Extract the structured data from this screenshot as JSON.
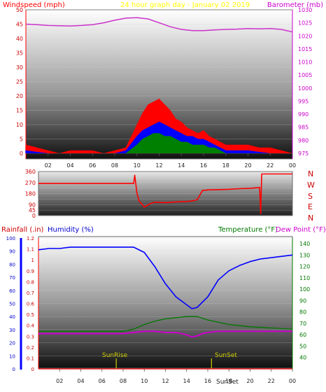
{
  "header": {
    "windspeed_title": "Windspeed (mph)",
    "center_title": "24 hour graph day - January 02 2019",
    "barometer_title": "Barometer (mb)"
  },
  "time_ticks": [
    "02",
    "04",
    "06",
    "08",
    "10",
    "12",
    "14",
    "16",
    "18",
    "20",
    "22",
    "00"
  ],
  "direction_labels": [
    "N",
    "W",
    "S",
    "E",
    "N"
  ],
  "lower_header": {
    "rainfall_label": "Rainfall (.in)",
    "humidity_label": "Humidity (%)",
    "temperature_label": "Temperature (°F)",
    "dewpoint_label": "Dew Point (°F)"
  },
  "markers": {
    "sunrise": "SunRise",
    "sunset": "SunSet",
    "sunset_bottom": "SunSet"
  },
  "colors": {
    "gust": "#ff0000",
    "speed": "#0000ff",
    "avg": "#008000",
    "barometer": "#cc33cc",
    "direction": "#ff0000",
    "humidity": "#0000ff",
    "temperature": "#007700",
    "dewpoint": "#cc00cc",
    "rain": "#ff0000",
    "marker": "#cccc00",
    "title_windspeed": "#ff0000",
    "title_center": "#ffff00",
    "title_barometer": "#cc00cc"
  },
  "chart_data": [
    {
      "type": "line",
      "xlim": [
        0,
        24
      ],
      "wind_axis": {
        "label": "Windspeed (mph)",
        "ylim": [
          0,
          50
        ],
        "ticks": [
          0,
          5,
          10,
          15,
          20,
          25,
          30,
          35,
          40,
          45,
          50
        ]
      },
      "baro_axis": {
        "label": "Barometer (mb)",
        "ylim": [
          975,
          1030
        ],
        "ticks": [
          975,
          980,
          985,
          990,
          995,
          1000,
          1005,
          1010,
          1015,
          1020,
          1025,
          1030
        ]
      },
      "series": [
        {
          "name": "Barometer",
          "x": [
            0,
            1,
            2,
            3,
            4,
            5,
            6,
            7,
            8,
            9,
            10,
            11,
            12,
            13,
            14,
            15,
            16,
            17,
            18,
            19,
            20,
            21,
            22,
            23,
            24
          ],
          "values": [
            1024.5,
            1024.3,
            1024.0,
            1023.9,
            1023.8,
            1024.0,
            1024.3,
            1025.0,
            1026.0,
            1026.8,
            1027.0,
            1026.5,
            1025.0,
            1023.5,
            1022.5,
            1022.0,
            1022.0,
            1022.3,
            1022.5,
            1022.6,
            1022.8,
            1022.7,
            1022.8,
            1022.5,
            1021.5
          ]
        },
        {
          "name": "Windspeed gust",
          "x": [
            0,
            1,
            2,
            3,
            4,
            5,
            6,
            7,
            8,
            9,
            10,
            10.5,
            11,
            11.5,
            12,
            12.5,
            13,
            13.5,
            14,
            14.5,
            15,
            15.5,
            16,
            16.5,
            17,
            17.5,
            18,
            19,
            20,
            21,
            22,
            23,
            24
          ],
          "values": [
            3,
            2,
            1,
            0,
            1,
            1,
            1,
            0,
            1,
            2,
            10,
            14,
            17,
            18,
            19,
            17,
            15,
            12,
            11,
            9,
            8,
            7,
            8,
            6,
            5,
            4,
            3,
            3,
            3,
            2,
            2,
            1,
            0
          ]
        },
        {
          "name": "Windspeed",
          "x": [
            0,
            2,
            4,
            6,
            8,
            9,
            10,
            10.5,
            11,
            11.5,
            12,
            12.5,
            13,
            13.5,
            14,
            14.5,
            15,
            15.5,
            16,
            16.5,
            17,
            17.5,
            18,
            20,
            22,
            24
          ],
          "values": [
            1,
            0,
            0,
            0,
            0,
            1,
            6,
            8,
            9,
            10,
            11,
            10,
            9,
            8,
            7,
            6,
            6,
            5,
            5,
            4,
            3,
            2,
            1,
            1,
            0,
            0
          ]
        },
        {
          "name": "Average windspeed",
          "x": [
            0,
            2,
            4,
            6,
            8,
            9,
            10,
            10.5,
            11,
            11.5,
            12,
            12.5,
            13,
            13.5,
            14,
            14.5,
            15,
            15.5,
            16,
            16.5,
            17,
            17.5,
            18,
            20,
            22,
            24
          ],
          "values": [
            0,
            0,
            0,
            0,
            0,
            0,
            3,
            5,
            6,
            7,
            7,
            6,
            6,
            5,
            4,
            4,
            3,
            3,
            3,
            2,
            2,
            1,
            0,
            0,
            0,
            0
          ]
        }
      ]
    },
    {
      "type": "line",
      "xlim": [
        0,
        24
      ],
      "ylim": [
        0,
        360
      ],
      "yticks": [
        0,
        45,
        90,
        135,
        180,
        225,
        270,
        315,
        360
      ],
      "series": [
        {
          "name": "Wind direction",
          "x": [
            0,
            1,
            2,
            3,
            4,
            5,
            6,
            7,
            8,
            9,
            9.1,
            9.3,
            9.5,
            10,
            10.5,
            11,
            12,
            13,
            14,
            14.5,
            15,
            15.5,
            16,
            17,
            18,
            19,
            20,
            20.9,
            21,
            21.1,
            22,
            23,
            24
          ],
          "values": [
            262,
            262,
            262,
            262,
            262,
            262,
            262,
            262,
            262,
            262,
            330,
            185,
            120,
            70,
            95,
            110,
            105,
            112,
            115,
            120,
            130,
            205,
            210,
            212,
            215,
            220,
            222,
            230,
            15,
            340,
            340,
            340,
            340
          ]
        }
      ]
    },
    {
      "type": "line",
      "xlim": [
        0,
        24
      ],
      "humidity_axis": {
        "label": "Humidity (%)",
        "ylim": [
          0,
          100
        ],
        "ticks": [
          0,
          10,
          20,
          30,
          40,
          50,
          60,
          70,
          80,
          90,
          100
        ]
      },
      "rain_axis": {
        "label": "Rainfall (.in)",
        "ylim": [
          0,
          1.2
        ],
        "ticks": [
          0,
          0.1,
          0.2,
          0.3,
          0.4,
          0.5,
          0.6,
          0.7,
          0.8,
          0.9,
          1,
          1.1,
          1.2
        ]
      },
      "temp_axis": {
        "label": "Temperature (°F)",
        "ylim": [
          30,
          145
        ],
        "ticks": [
          40,
          50,
          60,
          70,
          80,
          90,
          100,
          110,
          120,
          130,
          140
        ]
      },
      "series": [
        {
          "name": "Humidity",
          "x": [
            0,
            1,
            2,
            3,
            4,
            5,
            6,
            7,
            8,
            9,
            10,
            11,
            12,
            13,
            14,
            14.5,
            15,
            16,
            17,
            18,
            19,
            20,
            21,
            22,
            23,
            24
          ],
          "values": [
            91,
            92,
            92,
            93,
            93,
            93,
            93,
            93,
            93,
            93,
            89,
            78,
            65,
            55,
            49,
            46,
            47,
            55,
            68,
            75,
            79,
            82,
            84,
            85,
            86,
            87
          ]
        },
        {
          "name": "Temperature",
          "x": [
            0,
            2,
            4,
            6,
            8,
            9,
            10,
            11,
            12,
            13,
            14,
            15,
            16,
            17,
            18,
            19,
            20,
            22,
            24
          ],
          "values": [
            63,
            63,
            63,
            63,
            63,
            65,
            69,
            72,
            74,
            75,
            76,
            76,
            73,
            71,
            69,
            68,
            67,
            66,
            65
          ]
        },
        {
          "name": "Dew Point",
          "x": [
            0,
            2,
            4,
            6,
            8,
            9,
            10,
            11,
            12,
            13,
            14,
            14.5,
            15,
            15.5,
            16,
            17,
            18,
            20,
            22,
            24
          ],
          "values": [
            61,
            61,
            61,
            61,
            61,
            62,
            63,
            63,
            62,
            62,
            60,
            58,
            59,
            61,
            62,
            63,
            63,
            63,
            63,
            63
          ]
        },
        {
          "name": "Rainfall",
          "x": [
            0,
            24
          ],
          "values": [
            0,
            0
          ]
        }
      ],
      "annotations": [
        {
          "label": "SunRise",
          "x": 7.35
        },
        {
          "label": "SunSet",
          "x": 16.35
        }
      ]
    }
  ]
}
